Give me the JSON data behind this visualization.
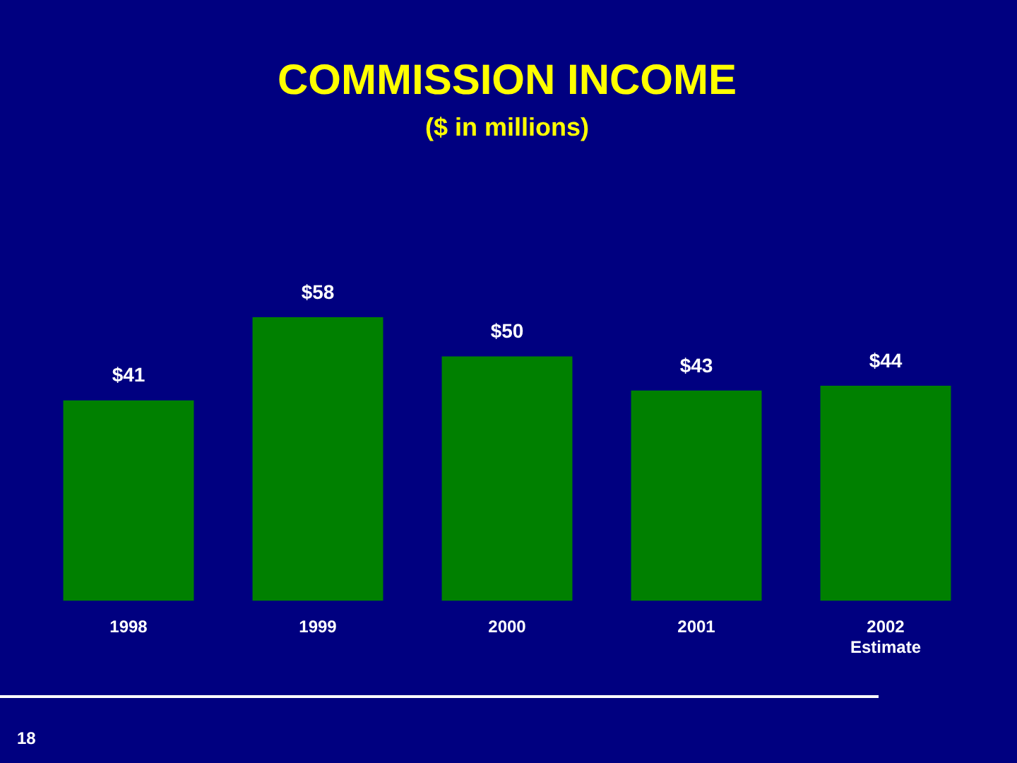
{
  "chart_data": {
    "type": "bar",
    "title": "COMMISSION INCOME",
    "subtitle": "($ in millions)",
    "categories": [
      "1998",
      "1999",
      "2000",
      "2001",
      "2002\nEstimate"
    ],
    "values": [
      41,
      58,
      50,
      43,
      44
    ],
    "value_labels": [
      "$41",
      "$58",
      "$50",
      "$43",
      "$44"
    ],
    "color": "#008000",
    "tick_labels": "x",
    "grid": false,
    "legend": false,
    "annotations": [
      "18"
    ]
  }
}
